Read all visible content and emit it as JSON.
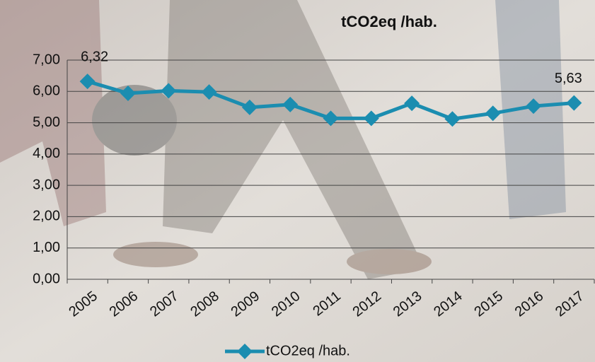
{
  "chart_data": {
    "type": "line",
    "title": "tCO2eq /hab.",
    "categories": [
      "2005",
      "2006",
      "2007",
      "2008",
      "2009",
      "2010",
      "2011",
      "2012",
      "2013",
      "2014",
      "2015",
      "2016",
      "2017"
    ],
    "series": [
      {
        "name": "tCO2eq /hab.",
        "color": "#1b8db0",
        "values": [
          6.32,
          5.94,
          6.02,
          5.98,
          5.49,
          5.58,
          5.14,
          5.14,
          5.62,
          5.12,
          5.3,
          5.53,
          5.63
        ],
        "value_labels": [
          "6,32",
          null,
          null,
          null,
          null,
          null,
          null,
          null,
          null,
          null,
          null,
          null,
          "5,63"
        ]
      }
    ],
    "ylim": [
      0,
      7
    ],
    "yticks": [
      {
        "value": 0,
        "label": "0,00"
      },
      {
        "value": 1,
        "label": "1,00"
      },
      {
        "value": 2,
        "label": "2,00"
      },
      {
        "value": 3,
        "label": "3,00"
      },
      {
        "value": 4,
        "label": "4,00"
      },
      {
        "value": 5,
        "label": "5,00"
      },
      {
        "value": 6,
        "label": "6,00"
      },
      {
        "value": 7,
        "label": "7,00"
      }
    ],
    "grid": true,
    "legend": "bottom"
  }
}
